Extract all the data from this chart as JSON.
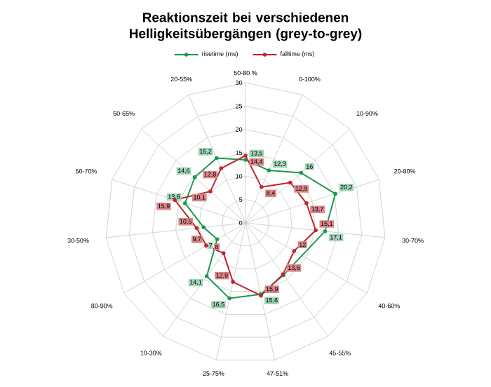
{
  "chart_data": {
    "type": "radar",
    "title": "Reaktionszeit bei verschiedenen Helligkeitsübergängen (grey-to-grey)",
    "categories": [
      "50-80 %",
      "0-100%",
      "10-90%",
      "20-80%",
      "30-70%",
      "40-60%",
      "45-55%",
      "47-51%",
      "25-75%",
      "10-30%",
      "80-90%",
      "30-50%",
      "50-70%",
      "50-65%",
      "20-55%"
    ],
    "series": [
      {
        "name": "risetime (ms)",
        "color": "#1a9a50",
        "values": [
          13.5,
          12.3,
          16,
          20.2,
          17.1,
          null,
          13.8,
          15.6,
          16.5,
          14.1,
          7,
          9,
          13.6,
          14.6,
          15.2
        ],
        "value_labels": [
          "13,5",
          "12,3",
          "16",
          "20,2",
          "17,1",
          null,
          null,
          "15,6",
          "16,5",
          "14,1",
          "7",
          null,
          "13,6",
          "14,6",
          "15,2"
        ]
      },
      {
        "name": "falltime (ms)",
        "color": "#c0262b",
        "values": [
          14.4,
          8.4,
          12.9,
          13.7,
          15.1,
          12,
          13.6,
          15.9,
          12.9,
          8,
          9.7,
          10.5,
          15.9,
          10.1,
          12.8
        ],
        "value_labels": [
          "14,4",
          "8,4",
          "12,9",
          "13,7",
          "15,1",
          "12",
          "13,6",
          "15,9",
          "12,9",
          "8",
          "9,7",
          "10,5",
          "15,9",
          "10,1",
          "12,8"
        ]
      }
    ],
    "ylim": [
      0,
      30
    ],
    "yticks": [
      0,
      5,
      10,
      15,
      20,
      25,
      30
    ],
    "grid": true,
    "legend": "top",
    "marker": "circle"
  }
}
